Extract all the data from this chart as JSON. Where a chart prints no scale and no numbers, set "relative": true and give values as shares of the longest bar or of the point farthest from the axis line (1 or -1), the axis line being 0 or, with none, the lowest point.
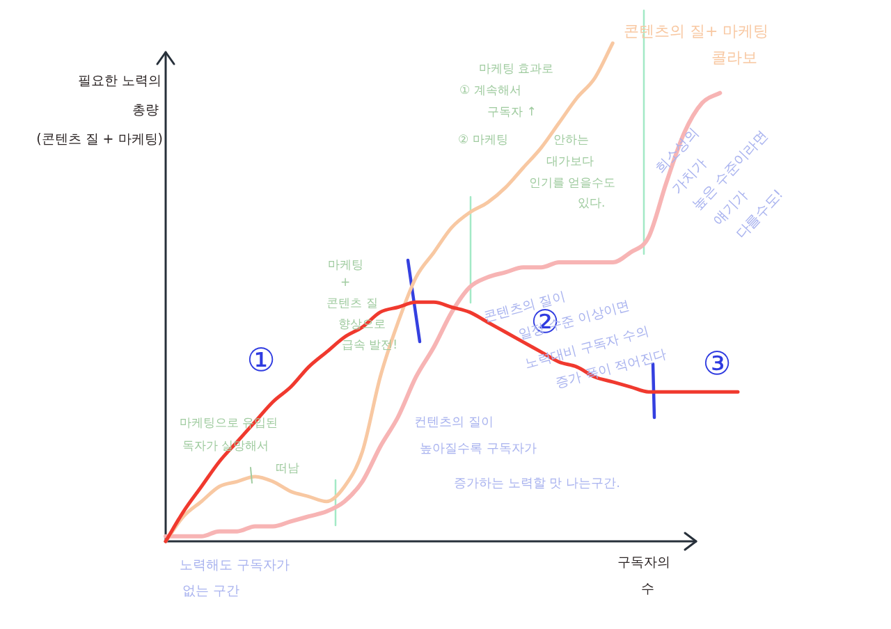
{
  "chart_data": {
    "type": "line",
    "relative": true,
    "xlabel": "구독자의 수",
    "ylabel": "필요한 노력의 총량 (콘텐츠 질 + 마케팅)",
    "categories": [
      null,
      null,
      null,
      null,
      null,
      null,
      null,
      null,
      null,
      null,
      null,
      null,
      null,
      null,
      null,
      null,
      null,
      null,
      null,
      null,
      null,
      null,
      null,
      null,
      null,
      null,
      null,
      null,
      null,
      null,
      null,
      null,
      null
    ],
    "series": [
      {
        "color": "#f7b4b4",
        "values": [
          0.01,
          0.01,
          0.01,
          0.02,
          0.02,
          0.03,
          0.03,
          0.04,
          0.05,
          0.06,
          0.08,
          0.12,
          0.19,
          0.25,
          0.33,
          0.39,
          0.46,
          0.51,
          0.53,
          0.54,
          0.55,
          0.55,
          0.56,
          0.56,
          0.56,
          0.56,
          0.58,
          0.61,
          0.72,
          0.82,
          0.88,
          0.9,
          null
        ]
      },
      {
        "name": "콘텐츠의 질+ 마케팅 콜라보",
        "color": "#f8c8a2",
        "values": [
          0,
          0.05,
          0.08,
          0.11,
          0.12,
          0.13,
          0.12,
          0.1,
          0.09,
          0.08,
          0.11,
          0.18,
          0.33,
          0.44,
          0.53,
          0.58,
          0.63,
          0.66,
          0.68,
          0.71,
          0.75,
          0.79,
          0.84,
          0.89,
          0.93,
          1,
          null,
          null,
          null,
          null,
          null,
          null,
          null
        ]
      },
      {
        "color": "#f0392e",
        "values": [
          0,
          0.06,
          0.11,
          0.16,
          0.2,
          0.24,
          0.28,
          0.31,
          0.35,
          0.38,
          0.41,
          0.43,
          0.46,
          0.47,
          0.48,
          0.48,
          0.47,
          0.46,
          0.44,
          0.42,
          0.4,
          0.38,
          0.36,
          0.35,
          0.33,
          0.32,
          0.31,
          0.3,
          0.3,
          0.3,
          0.3,
          0.3,
          0.3
        ]
      }
    ],
    "annotations": [
      "마케팅 효과로 ① 계속해서 구독자 ↑ ② 마케팅 안하는 대가보다 인기를 얻을수도 있다.",
      "희소성의 가치가 높은 수준이라면 얘기가 다를수도!",
      "마케팅 + 콘텐츠 질 향상으로 급속 발전!",
      "①",
      "②",
      "③",
      "콘텐츠의 질이 일정 수준 이상이면 노력대비 구독자 수의 증가 폭이 적어진다",
      "마케팅으로 유입된 독자가 실망해서 떠남",
      "컨텐츠의 질이 높아질수록 구독자가 증가하는 노력할 맛 나는구간.",
      "노력해도 구독자가 없는 구간"
    ]
  }
}
